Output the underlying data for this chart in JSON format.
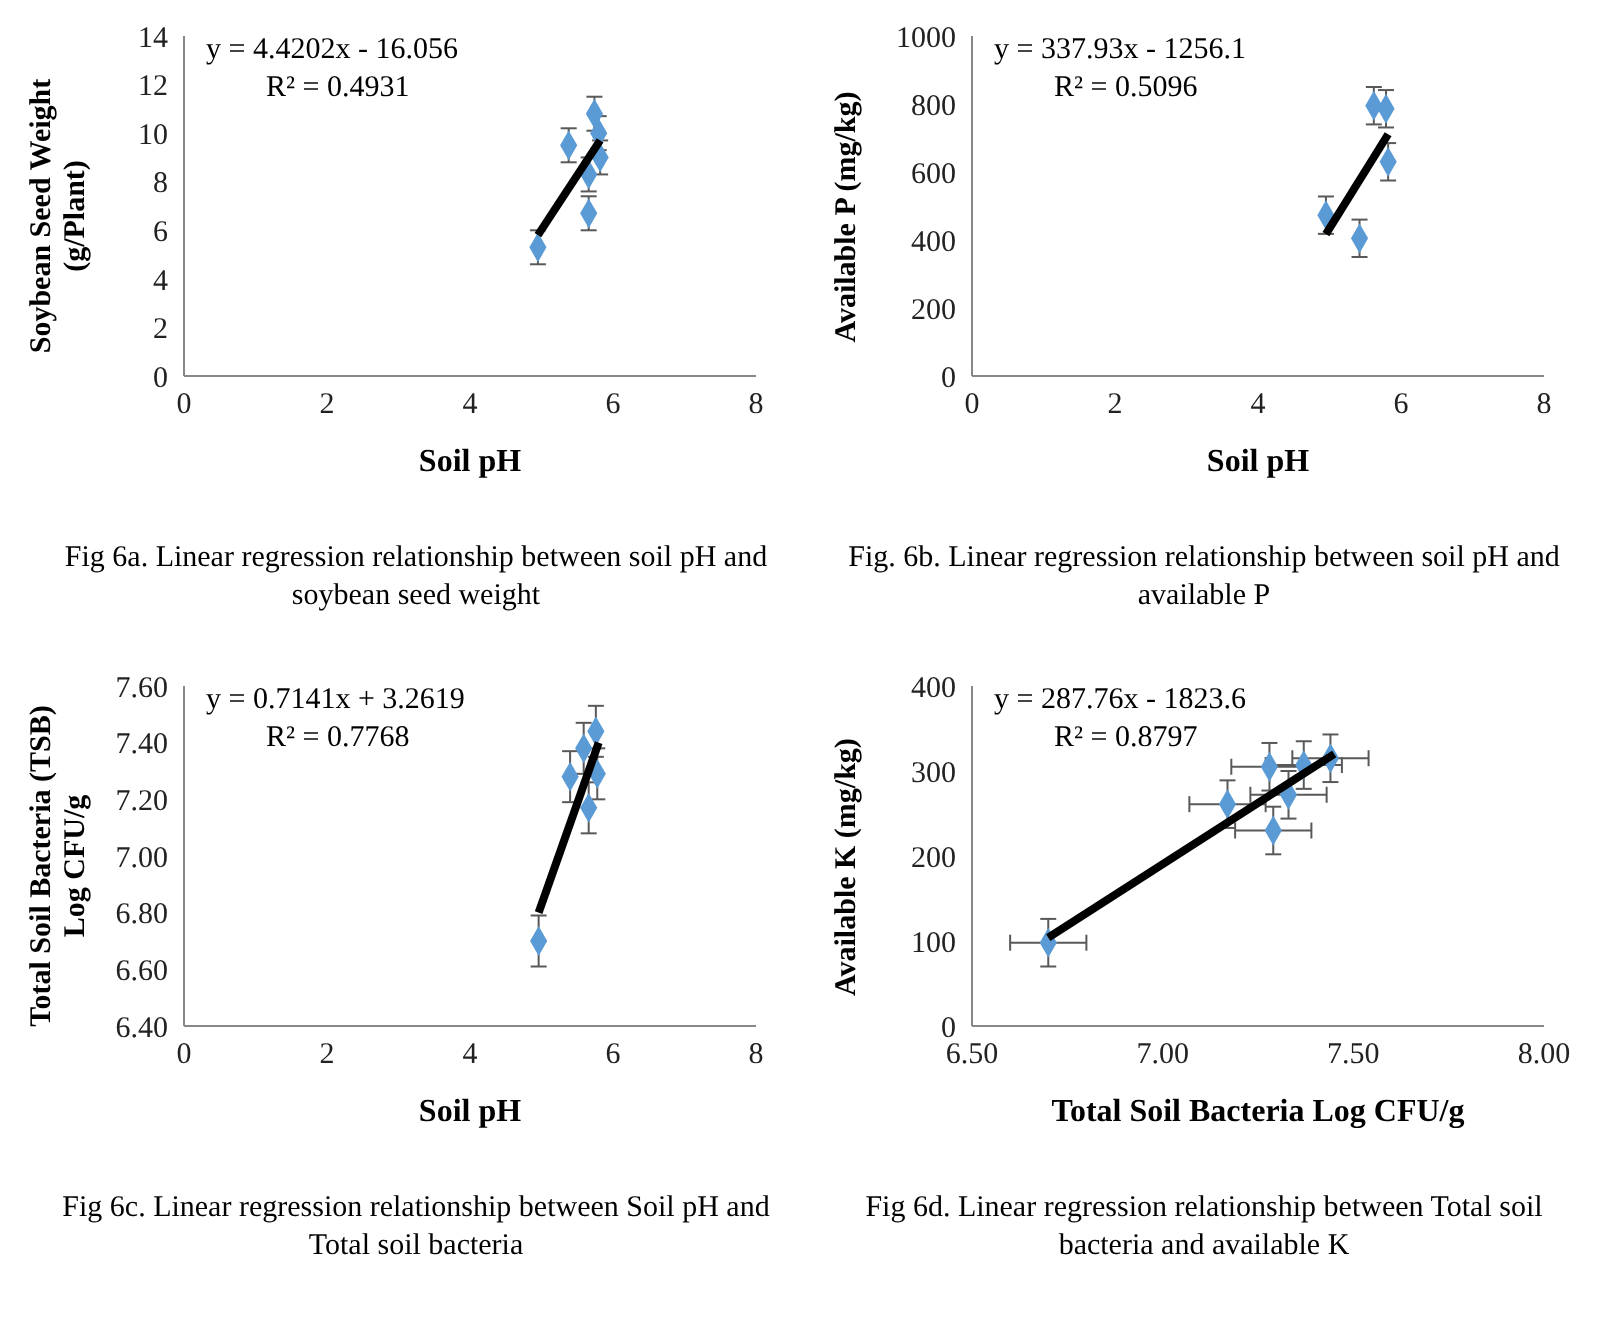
{
  "chart_data": [
    {
      "type": "scatter",
      "title": "Fig 6a. Linear regression relationship between soil pH and soybean seed weight",
      "xlabel": "Soil pH",
      "ylabel": "Soybean Seed Weight (g/Plant)",
      "annotations": [
        "y = 4.4202x - 16.056",
        "R² = 0.4931"
      ],
      "x": [
        4.95,
        5.38,
        5.66,
        5.74,
        5.8,
        5.82,
        5.66
      ],
      "xlim": [
        0,
        8
      ],
      "xticks": [
        0,
        2,
        4,
        6,
        8
      ],
      "ylim": [
        0,
        14
      ],
      "yticks": [
        0,
        2,
        4,
        6,
        8,
        10,
        12,
        14
      ],
      "grid": false,
      "legend": false,
      "marker": "diamond",
      "series": [
        {
          "color": "#5b9bd5",
          "values": [
            5.3,
            9.5,
            6.7,
            10.8,
            10,
            9.0,
            8.3
          ],
          "errors": [
            0.7,
            0.7,
            0.7,
            0.7,
            0.7,
            0.7,
            0.7
          ]
        },
        {
          "type": "line",
          "color": "#000000",
          "marker": "none",
          "x": [
            4.95,
            5.82
          ],
          "values": [
            5.8,
            9.7
          ]
        }
      ]
    },
    {
      "type": "scatter",
      "title": "Fig. 6b. Linear regression relationship between soil pH and available P",
      "xlabel": "Soil pH",
      "ylabel": "Available P (mg/kg)",
      "annotations": [
        "y = 337.93x - 1256.1",
        "R² = 0.5096"
      ],
      "x": [
        4.95,
        5.42,
        5.62,
        5.79,
        5.82
      ],
      "xlim": [
        0,
        8
      ],
      "xticks": [
        0,
        2,
        4,
        6,
        8
      ],
      "ylim": [
        0,
        1000
      ],
      "yticks": [
        0,
        200,
        400,
        600,
        800,
        1000
      ],
      "grid": false,
      "legend": false,
      "marker": "diamond",
      "series": [
        {
          "color": "#5b9bd5",
          "values": [
            473,
            405,
            795,
            786,
            630
          ],
          "errors": [
            55,
            55,
            55,
            55,
            55
          ]
        },
        {
          "type": "line",
          "color": "#000000",
          "marker": "none",
          "x": [
            4.95,
            5.82
          ],
          "values": [
            417,
            711
          ]
        }
      ]
    },
    {
      "type": "scatter",
      "title": "Fig 6c. Linear regression relationship between Soil pH and Total soil bacteria",
      "xlabel": "Soil pH",
      "ylabel": "Total Soil Bacteria (TSB) Log CFU/g",
      "annotations": [
        "y = 0.7141x + 3.2619",
        "R² = 0.7768"
      ],
      "x": [
        4.96,
        5.4,
        5.66,
        5.59,
        5.76,
        5.78
      ],
      "xlim": [
        0,
        8
      ],
      "xticks": [
        0,
        2,
        4,
        6,
        8
      ],
      "ylim": [
        6.4,
        7.6
      ],
      "yticks": [
        {
          "value": 6.4,
          "label": "6.40"
        },
        {
          "value": 6.6,
          "label": "6.60"
        },
        {
          "value": 6.8,
          "label": "6.80"
        },
        {
          "value": 7.0,
          "label": "7.00"
        },
        {
          "value": 7.2,
          "label": "7.20"
        },
        {
          "value": 7.4,
          "label": "7.40"
        },
        {
          "value": 7.6,
          "label": "7.60"
        }
      ],
      "grid": false,
      "legend": false,
      "marker": "diamond",
      "series": [
        {
          "color": "#5b9bd5",
          "values": [
            6.7,
            7.28,
            7.17,
            7.38,
            7.44,
            7.29
          ],
          "errors": [
            0.09,
            0.09,
            0.09,
            0.09,
            0.09,
            0.09
          ]
        },
        {
          "type": "line",
          "color": "#000000",
          "marker": "none",
          "x": [
            4.96,
            5.8
          ],
          "values": [
            6.8,
            7.4
          ]
        }
      ]
    },
    {
      "type": "scatter",
      "title": "Fig 6d. Linear regression relationship between Total soil bacteria and available K",
      "xlabel": "Total Soil Bacteria Log CFU/g",
      "ylabel": "Available K (mg/kg)",
      "annotations": [
        "y = 287.76x - 1823.6",
        "R² = 0.8797"
      ],
      "x": [
        6.7,
        7.17,
        7.28,
        7.37,
        7.44,
        7.33,
        7.29
      ],
      "xlim": [
        6.5,
        8
      ],
      "xticks": [
        {
          "value": 6.5,
          "label": "6.50"
        },
        {
          "value": 7.0,
          "label": "7.00"
        },
        {
          "value": 7.5,
          "label": "7.50"
        },
        {
          "value": 8.0,
          "label": "8.00"
        }
      ],
      "ylim": [
        0,
        400
      ],
      "yticks": [
        0,
        100,
        200,
        300,
        400
      ],
      "grid": false,
      "legend": false,
      "marker": "diamond",
      "series": [
        {
          "color": "#5b9bd5",
          "values": [
            98,
            261,
            305,
            307,
            315,
            272,
            230
          ],
          "errors": [
            28,
            28,
            28,
            28,
            28,
            28,
            28
          ],
          "xerrors": [
            0.1,
            0.1,
            0.1,
            0.1,
            0.1,
            0.1,
            0.1
          ]
        },
        {
          "type": "line",
          "color": "#000000",
          "marker": "none",
          "x": [
            6.7,
            7.45
          ],
          "values": [
            104,
            320
          ]
        }
      ]
    }
  ]
}
